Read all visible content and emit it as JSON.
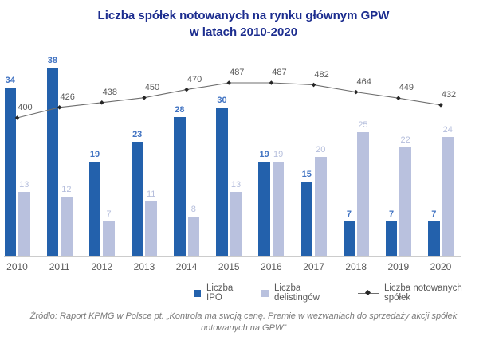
{
  "title": {
    "line1": "Liczba spółek notowanych na rynku głównym GPW",
    "line2": "w latach 2010-2020"
  },
  "legend": [
    {
      "label": "Liczba IPO",
      "type": "square",
      "color": "#2361ac"
    },
    {
      "label": "Liczba delistingów",
      "type": "square",
      "color": "#b9c1de"
    },
    {
      "label": "Liczba notowanych spółek",
      "type": "line",
      "color": "#6e6e6e"
    }
  ],
  "source": {
    "line1": "Źródło: Raport KPMG w Polsce pt. „Kontrola ma swoją cenę. Premie w wezwaniach do sprzedaży akcji spółek",
    "line2": "notowanych na GPW”"
  },
  "colors": {
    "title": "#1c2d8f",
    "ipo_bar": "#2361ac",
    "ipo_label": "#4173c2",
    "delisting_bar": "#b9c1de",
    "delisting_label": "#b5bedc",
    "line": "#6e6e6e",
    "line_marker": "#262626",
    "line_label": "#595959",
    "year_label": "#595959",
    "axis": "#cccccc"
  },
  "chart_data": {
    "type": "bar",
    "title": "Liczba spółek notowanych na rynku głównym GPW w latach 2010-2020",
    "categories": [
      "2010",
      "2011",
      "2012",
      "2013",
      "2014",
      "2015",
      "2016",
      "2017",
      "2018",
      "2019",
      "2020"
    ],
    "series": [
      {
        "name": "Liczba IPO",
        "type": "bar",
        "values": [
          34,
          38,
          19,
          23,
          28,
          30,
          19,
          15,
          7,
          7,
          7
        ]
      },
      {
        "name": "Liczba delistingów",
        "type": "bar",
        "values": [
          13,
          12,
          7,
          11,
          8,
          13,
          19,
          20,
          25,
          22,
          24
        ]
      },
      {
        "name": "Liczba notowanych spółek",
        "type": "line",
        "values": [
          400,
          426,
          438,
          450,
          470,
          487,
          487,
          482,
          464,
          449,
          432
        ]
      }
    ],
    "value_labels": true,
    "grid": false,
    "legend_position": "bottom",
    "bar_axis_range": [
      0,
      40
    ],
    "line_axis_range": [
      380,
      500
    ]
  }
}
